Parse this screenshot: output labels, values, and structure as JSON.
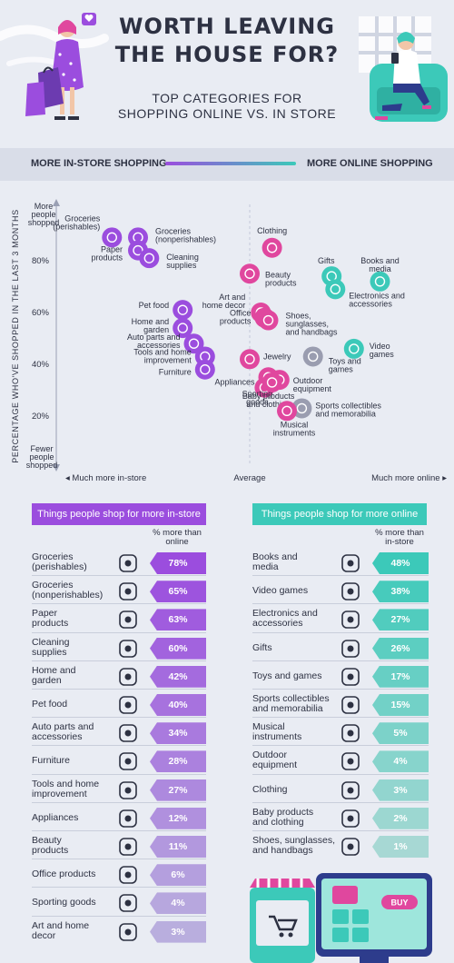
{
  "header": {
    "title_line1": "WORTH LEAVING",
    "title_line2": "THE HOUSE FOR?",
    "subtitle_line1": "TOP CATEGORIES FOR",
    "subtitle_line2": "SHOPPING ONLINE VS. IN STORE"
  },
  "band": {
    "left_label": "MORE IN-STORE SHOPPING",
    "right_label": "MORE ONLINE SHOPPING"
  },
  "colors": {
    "instore": "#9b4dde",
    "online": "#3cc9b9",
    "pink": "#e0479e",
    "gray": "#9a9db0",
    "text": "#2d3142"
  },
  "chart_data": [
    {
      "type": "scatter",
      "ylabel": "PERCENTAGE WHO'VE SHOPPED IN THE LAST 3 MONTHS",
      "y_top_label": [
        "More",
        "people",
        "shopped"
      ],
      "y_bottom_label": [
        "Fewer",
        "people",
        "shopped"
      ],
      "y_ticks": [
        "80%",
        "60%",
        "40%",
        "20%"
      ],
      "x_left_label": "Much more in-store",
      "x_mid_label": "Average",
      "x_right_label": "Much more online",
      "points": [
        {
          "label": "Groceries (perishables)",
          "lines": [
            "Groceries",
            "(perishables)"
          ],
          "x": 0.13,
          "y": 89,
          "group": "instore",
          "icon": "apple-icon"
        },
        {
          "label": "Groceries (nonperishables)",
          "lines": [
            "Groceries",
            "(nonperishables)"
          ],
          "x": 0.2,
          "y": 89,
          "group": "instore",
          "icon": "jar-icon"
        },
        {
          "label": "Paper products",
          "lines": [
            "Paper",
            "products"
          ],
          "x": 0.2,
          "y": 84,
          "group": "instore",
          "icon": "paper-roll-icon"
        },
        {
          "label": "Cleaning supplies",
          "lines": [
            "Cleaning",
            "supplies"
          ],
          "x": 0.23,
          "y": 81,
          "group": "instore",
          "icon": "spray-bottle-icon"
        },
        {
          "label": "Clothing",
          "lines": [
            "Clothing"
          ],
          "x": 0.56,
          "y": 85,
          "group": "pink",
          "icon": "shirt-icon"
        },
        {
          "label": "Beauty products",
          "lines": [
            "Beauty",
            "products"
          ],
          "x": 0.5,
          "y": 75,
          "group": "pink",
          "icon": "nail-polish-icon"
        },
        {
          "label": "Gifts",
          "lines": [
            "Gifts"
          ],
          "x": 0.72,
          "y": 74,
          "group": "online",
          "icon": "gift-icon"
        },
        {
          "label": "Books and media",
          "lines": [
            "Books and",
            "media"
          ],
          "x": 0.85,
          "y": 72,
          "group": "online",
          "icon": "book-icon"
        },
        {
          "label": "Electronics and accessories",
          "lines": [
            "Electronics and",
            "accessories"
          ],
          "x": 0.73,
          "y": 69,
          "group": "online",
          "icon": "laptop-icon"
        },
        {
          "label": "Art and home decor",
          "lines": [
            "Art and",
            "home decor"
          ],
          "x": 0.53,
          "y": 60,
          "group": "pink",
          "icon": "frame-icon"
        },
        {
          "label": "Office products",
          "lines": [
            "Office",
            "products"
          ],
          "x": 0.54,
          "y": 58,
          "group": "pink",
          "icon": "pencil-icon"
        },
        {
          "label": "Shoes, sunglasses, and handbags",
          "lines": [
            "Shoes,",
            "sunglasses,",
            "and handbags"
          ],
          "x": 0.55,
          "y": 57,
          "group": "pink",
          "icon": "heel-icon"
        },
        {
          "label": "Pet food",
          "lines": [
            "Pet food"
          ],
          "x": 0.32,
          "y": 61,
          "group": "instore",
          "icon": "bone-icon"
        },
        {
          "label": "Home and garden",
          "lines": [
            "Home and",
            "garden"
          ],
          "x": 0.32,
          "y": 54,
          "group": "instore",
          "icon": "birdhouse-icon"
        },
        {
          "label": "Auto parts and accessories",
          "lines": [
            "Auto parts and",
            "accessories"
          ],
          "x": 0.35,
          "y": 48,
          "group": "instore",
          "icon": "wheel-icon"
        },
        {
          "label": "Video games",
          "lines": [
            "Video",
            "games"
          ],
          "x": 0.78,
          "y": 46,
          "group": "online",
          "icon": "gamepad-icon"
        },
        {
          "label": "Toys and games",
          "lines": [
            "Toys and",
            "games"
          ],
          "x": 0.67,
          "y": 43,
          "group": "gray",
          "icon": "bear-icon"
        },
        {
          "label": "Jewelry",
          "lines": [
            "Jewelry"
          ],
          "x": 0.5,
          "y": 42,
          "group": "pink",
          "icon": "ring-icon"
        },
        {
          "label": "Tools and home improvement",
          "lines": [
            "Tools and home",
            "improvement"
          ],
          "x": 0.38,
          "y": 43,
          "group": "instore",
          "icon": "drill-icon"
        },
        {
          "label": "Furniture",
          "lines": [
            "Furniture"
          ],
          "x": 0.38,
          "y": 38,
          "group": "instore",
          "icon": "sofa-icon"
        },
        {
          "label": "Appliances",
          "lines": [
            "Appliances"
          ],
          "x": 0.55,
          "y": 35,
          "group": "pink",
          "icon": "microwave-icon"
        },
        {
          "label": "Outdoor equipment",
          "lines": [
            "Outdoor",
            "equipment"
          ],
          "x": 0.58,
          "y": 34,
          "group": "pink",
          "icon": "tent-icon"
        },
        {
          "label": "Sporting goods",
          "lines": [
            "Sporting",
            "goods"
          ],
          "x": 0.54,
          "y": 31,
          "group": "pink",
          "icon": "football-icon"
        },
        {
          "label": "Baby products and clothing",
          "lines": [
            "Baby products",
            "and clothing"
          ],
          "x": 0.56,
          "y": 33,
          "group": "pink",
          "icon": "stroller-icon"
        },
        {
          "label": "Sports collectibles and memorabilia",
          "lines": [
            "Sports collectibles",
            "and memorabilia"
          ],
          "x": 0.64,
          "y": 23,
          "group": "gray",
          "icon": "helmet-icon"
        },
        {
          "label": "Musical instruments",
          "lines": [
            "Musical",
            "instruments"
          ],
          "x": 0.6,
          "y": 22,
          "group": "pink",
          "icon": "guitar-icon"
        }
      ]
    },
    {
      "type": "bar",
      "title": "Things people shop for more in-store",
      "value_header": [
        "% more than",
        "online"
      ],
      "categories": [
        "Groceries (perishables)",
        "Groceries (nonperishables)",
        "Paper products",
        "Cleaning supplies",
        "Home and garden",
        "Pet food",
        "Auto parts and accessories",
        "Furniture",
        "Tools and home improvement",
        "Appliances",
        "Beauty products",
        "Office products",
        "Sporting goods",
        "Art and home decor"
      ],
      "label_lines": [
        [
          "Groceries",
          "(perishables)"
        ],
        [
          "Groceries",
          "(nonperishables)"
        ],
        [
          "Paper",
          "products"
        ],
        [
          "Cleaning",
          "supplies"
        ],
        [
          "Home and",
          "garden"
        ],
        [
          "Pet food"
        ],
        [
          "Auto parts and",
          "accessories"
        ],
        [
          "Furniture"
        ],
        [
          "Tools and home",
          "improvement"
        ],
        [
          "Appliances"
        ],
        [
          "Beauty",
          "products"
        ],
        [
          "Office products"
        ],
        [
          "Sporting goods"
        ],
        [
          "Art and home",
          "decor"
        ]
      ],
      "icons": [
        "apple-icon",
        "jar-icon",
        "paper-roll-icon",
        "spray-bottle-icon",
        "birdhouse-icon",
        "bone-icon",
        "wheel-icon",
        "sofa-icon",
        "drill-icon",
        "microwave-icon",
        "nail-polish-icon",
        "pencil-icon",
        "football-icon",
        "frame-icon"
      ],
      "values": [
        "78%",
        "65%",
        "63%",
        "60%",
        "42%",
        "40%",
        "34%",
        "28%",
        "27%",
        "12%",
        "11%",
        "6%",
        "4%",
        "3%"
      ]
    },
    {
      "type": "bar",
      "title": "Things people shop for more online",
      "value_header": [
        "% more than",
        "in-store"
      ],
      "categories": [
        "Books and media",
        "Video games",
        "Electronics and accessories",
        "Gifts",
        "Toys and games",
        "Sports collectibles and memorabilia",
        "Musical instruments",
        "Outdoor equipment",
        "Clothing",
        "Baby products and clothing",
        "Shoes, sunglasses, and handbags"
      ],
      "label_lines": [
        [
          "Books and",
          "media"
        ],
        [
          "Video games"
        ],
        [
          "Electronics and",
          "accessories"
        ],
        [
          "Gifts"
        ],
        [
          "Toys and games"
        ],
        [
          "Sports collectibles",
          "and memorabilia"
        ],
        [
          "Musical",
          "instruments"
        ],
        [
          "Outdoor",
          "equipment"
        ],
        [
          "Clothing"
        ],
        [
          "Baby products",
          "and clothing"
        ],
        [
          "Shoes, sunglasses,",
          "and handbags"
        ]
      ],
      "icons": [
        "book-icon",
        "gamepad-icon",
        "laptop-icon",
        "gift-icon",
        "bear-icon",
        "helmet-icon",
        "guitar-icon",
        "tent-icon",
        "shirt-icon",
        "stroller-icon",
        "heel-icon"
      ],
      "values": [
        "48%",
        "38%",
        "27%",
        "26%",
        "17%",
        "15%",
        "5%",
        "4%",
        "3%",
        "2%",
        "1%"
      ]
    }
  ],
  "illustration": {
    "buy_button": "BUY"
  }
}
